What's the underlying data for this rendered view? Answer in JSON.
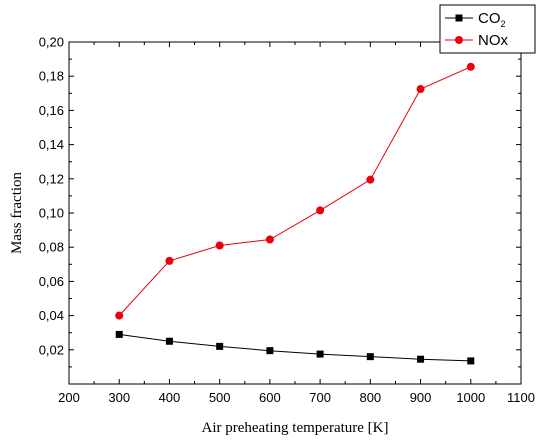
{
  "chart_data": {
    "type": "line",
    "title": "",
    "xlabel": "Air preheating temperature [K]",
    "ylabel": "Mass fraction",
    "xlim": [
      200,
      1100
    ],
    "ylim": [
      0.0,
      0.2
    ],
    "x_ticks": [
      200,
      300,
      400,
      500,
      600,
      700,
      800,
      900,
      1000,
      1100
    ],
    "x_tick_labels": [
      "200",
      "300",
      "400",
      "500",
      "600",
      "700",
      "800",
      "900",
      "1000",
      "1100"
    ],
    "y_ticks": [
      0.02,
      0.04,
      0.06,
      0.08,
      0.1,
      0.12,
      0.14,
      0.16,
      0.18,
      0.2
    ],
    "y_tick_labels": [
      "0,02",
      "0,04",
      "0,06",
      "0,08",
      "0,10",
      "0,12",
      "0,14",
      "0,16",
      "0,18",
      "0,20"
    ],
    "grid": false,
    "legend_position": "top-right",
    "x": [
      300,
      400,
      500,
      600,
      700,
      800,
      900,
      1000
    ],
    "series": [
      {
        "name": "CO",
        "name_subscript": "2",
        "color": "#000000",
        "marker": "square",
        "values": [
          0.029,
          0.025,
          0.022,
          0.0195,
          0.0175,
          0.016,
          0.0145,
          0.0135
        ]
      },
      {
        "name": "NOx",
        "name_subscript": "",
        "color": "#e8000b",
        "marker": "circle",
        "values": [
          0.04,
          0.072,
          0.081,
          0.0845,
          0.1015,
          0.1195,
          0.1725,
          0.1855
        ]
      }
    ]
  }
}
